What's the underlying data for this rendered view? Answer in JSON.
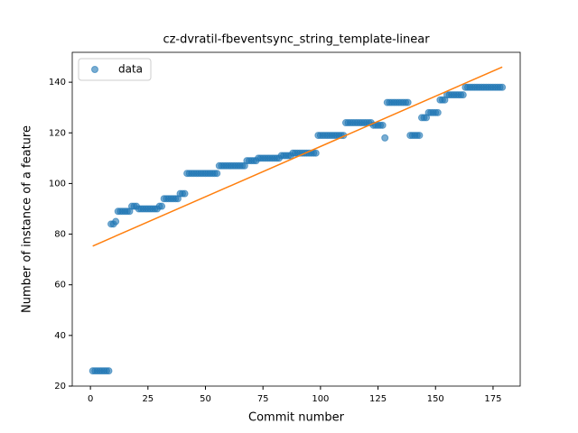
{
  "chart_data": {
    "type": "scatter",
    "title": "cz-dvratil-fbeventsync_string_template-linear",
    "x_label": "Commit number",
    "y_label": "Number of instance of a feature",
    "xlim": [
      -7.9,
      186.8
    ],
    "ylim": [
      20,
      151.8
    ],
    "xticks": [
      0,
      25,
      50,
      75,
      100,
      125,
      150,
      175
    ],
    "yticks": [
      20,
      40,
      60,
      80,
      100,
      120,
      140
    ],
    "legend": "upper left",
    "series": [
      {
        "name": "data",
        "color": "#1f77b4",
        "kind": "scatter",
        "x": [
          1,
          2,
          3,
          4,
          5,
          6,
          7,
          8,
          9,
          10,
          11,
          12,
          13,
          14,
          15,
          16,
          17,
          18,
          19,
          20,
          21,
          22,
          23,
          24,
          25,
          26,
          27,
          28,
          29,
          30,
          31,
          32,
          33,
          34,
          35,
          36,
          37,
          38,
          39,
          40,
          41,
          42,
          43,
          44,
          45,
          46,
          47,
          48,
          49,
          50,
          51,
          52,
          53,
          54,
          55,
          56,
          57,
          58,
          59,
          60,
          61,
          62,
          63,
          64,
          65,
          66,
          67,
          68,
          69,
          70,
          71,
          72,
          73,
          74,
          75,
          76,
          77,
          78,
          79,
          80,
          81,
          82,
          83,
          84,
          85,
          86,
          87,
          88,
          89,
          90,
          91,
          92,
          93,
          94,
          95,
          96,
          97,
          98,
          99,
          100,
          101,
          102,
          103,
          104,
          105,
          106,
          107,
          108,
          109,
          110,
          111,
          112,
          113,
          114,
          115,
          116,
          117,
          118,
          119,
          120,
          121,
          122,
          123,
          124,
          125,
          126,
          127,
          128,
          129,
          130,
          131,
          132,
          133,
          134,
          135,
          136,
          137,
          138,
          139,
          140,
          141,
          142,
          143,
          144,
          145,
          146,
          147,
          148,
          149,
          150,
          151,
          152,
          153,
          154,
          155,
          156,
          157,
          158,
          159,
          160,
          161,
          162,
          163,
          164,
          165,
          166,
          167,
          168,
          169,
          170,
          171,
          172,
          173,
          174,
          175,
          176,
          177,
          178,
          179
        ],
        "values": [
          26,
          26,
          26,
          26,
          26,
          26,
          26,
          26,
          84,
          84,
          85,
          89,
          89,
          89,
          89,
          89,
          89,
          91,
          91,
          91,
          90,
          90,
          90,
          90,
          90,
          90,
          90,
          90,
          90,
          91,
          91,
          94,
          94,
          94,
          94,
          94,
          94,
          94,
          96,
          96,
          96,
          104,
          104,
          104,
          104,
          104,
          104,
          104,
          104,
          104,
          104,
          104,
          104,
          104,
          104,
          107,
          107,
          107,
          107,
          107,
          107,
          107,
          107,
          107,
          107,
          107,
          107,
          109,
          109,
          109,
          109,
          109,
          110,
          110,
          110,
          110,
          110,
          110,
          110,
          110,
          110,
          110,
          111,
          111,
          111,
          111,
          111,
          112,
          112,
          112,
          112,
          112,
          112,
          112,
          112,
          112,
          112,
          112,
          119,
          119,
          119,
          119,
          119,
          119,
          119,
          119,
          119,
          119,
          119,
          119,
          124,
          124,
          124,
          124,
          124,
          124,
          124,
          124,
          124,
          124,
          124,
          124,
          123,
          123,
          123,
          123,
          123,
          118,
          132,
          132,
          132,
          132,
          132,
          132,
          132,
          132,
          132,
          132,
          119,
          119,
          119,
          119,
          119,
          126,
          126,
          126,
          128,
          128,
          128,
          128,
          128,
          133,
          133,
          133,
          135,
          135,
          135,
          135,
          135,
          135,
          135,
          135,
          138,
          138,
          138,
          138,
          138,
          138,
          138,
          138,
          138,
          138,
          138,
          138,
          138,
          138,
          138,
          138,
          138
        ]
      },
      {
        "color": "#ff7f0e",
        "kind": "line",
        "x": [
          1,
          179
        ],
        "values": [
          75.3,
          146
        ]
      }
    ]
  }
}
